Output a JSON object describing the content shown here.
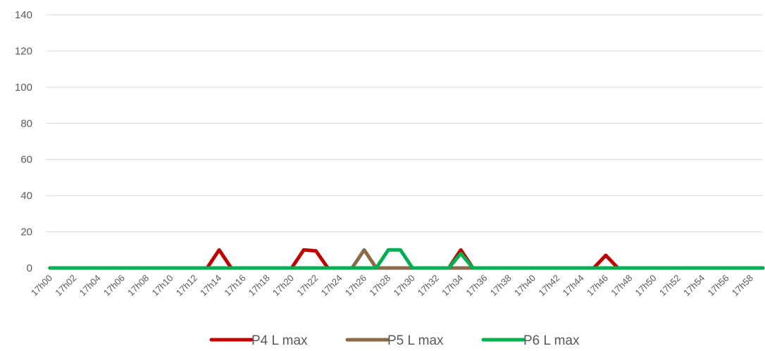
{
  "chart_data": {
    "type": "line",
    "title": "",
    "xlabel": "",
    "ylabel": "",
    "ylim": [
      0,
      140
    ],
    "y_ticks": [
      0,
      20,
      40,
      60,
      80,
      100,
      120,
      140
    ],
    "grid": "horizontal",
    "legend_position": "bottom",
    "x": [
      "17h00",
      "17h01",
      "17h02",
      "17h03",
      "17h04",
      "17h05",
      "17h06",
      "17h07",
      "17h08",
      "17h09",
      "17h10",
      "17h11",
      "17h12",
      "17h13",
      "17h14",
      "17h15",
      "17h16",
      "17h17",
      "17h18",
      "17h19",
      "17h20",
      "17h21",
      "17h22",
      "17h23",
      "17h24",
      "17h25",
      "17h26",
      "17h27",
      "17h28",
      "17h29",
      "17h30",
      "17h31",
      "17h32",
      "17h33",
      "17h34",
      "17h35",
      "17h36",
      "17h37",
      "17h38",
      "17h39",
      "17h40",
      "17h41",
      "17h42",
      "17h43",
      "17h44",
      "17h45",
      "17h46",
      "17h47",
      "17h48",
      "17h49",
      "17h50",
      "17h51",
      "17h52",
      "17h53",
      "17h54",
      "17h55",
      "17h56",
      "17h57",
      "17h58",
      "17h59"
    ],
    "x_tick_labels": [
      "17h00",
      "17h02",
      "17h04",
      "17h06",
      "17h08",
      "17h10",
      "17h12",
      "17h14",
      "17h16",
      "17h18",
      "17h20",
      "17h22",
      "17h24",
      "17h26",
      "17h28",
      "17h30",
      "17h32",
      "17h34",
      "17h36",
      "17h38",
      "17h40",
      "17h42",
      "17h44",
      "17h46",
      "17h48",
      "17h50",
      "17h52",
      "17h54",
      "17h56",
      "17h58"
    ],
    "series": [
      {
        "name": "P4 L max",
        "color": "#C00000",
        "values": [
          0,
          0,
          0,
          0,
          0,
          0,
          0,
          0,
          0,
          0,
          0,
          0,
          0,
          0,
          10,
          0,
          0,
          0,
          0,
          0,
          0,
          10,
          9.5,
          0,
          0,
          0,
          0,
          0,
          0,
          0,
          0,
          0,
          0,
          0,
          10,
          0,
          0,
          0,
          0,
          0,
          0,
          0,
          0,
          0,
          0,
          0,
          7,
          0,
          0,
          0,
          0,
          0,
          0,
          0,
          0,
          0,
          0,
          0,
          0,
          0
        ]
      },
      {
        "name": "P5 L max",
        "color": "#8B6A4A",
        "values": [
          0,
          0,
          0,
          0,
          0,
          0,
          0,
          0,
          0,
          0,
          0,
          0,
          0,
          0,
          0,
          0,
          0,
          0,
          0,
          0,
          0,
          0,
          0,
          0,
          0,
          0,
          10,
          0,
          0,
          0,
          0,
          0,
          0,
          0,
          0,
          0,
          0,
          0,
          0,
          0,
          0,
          0,
          0,
          0,
          0,
          0,
          0,
          0,
          0,
          0,
          0,
          0,
          0,
          0,
          0,
          0,
          0,
          0,
          0,
          0
        ]
      },
      {
        "name": "P6 L max",
        "color": "#00B050",
        "values": [
          0,
          0,
          0,
          0,
          0,
          0,
          0,
          0,
          0,
          0,
          0,
          0,
          0,
          0,
          0,
          0,
          0,
          0,
          0,
          0,
          0,
          0,
          0,
          0,
          0,
          0,
          0,
          0,
          10,
          10,
          0,
          0,
          0,
          0,
          8,
          0,
          0,
          0,
          0,
          0,
          0,
          0,
          0,
          0,
          0,
          0,
          0,
          0,
          0,
          0,
          0,
          0,
          0,
          0,
          0,
          0,
          0,
          0,
          0,
          0
        ]
      }
    ]
  }
}
